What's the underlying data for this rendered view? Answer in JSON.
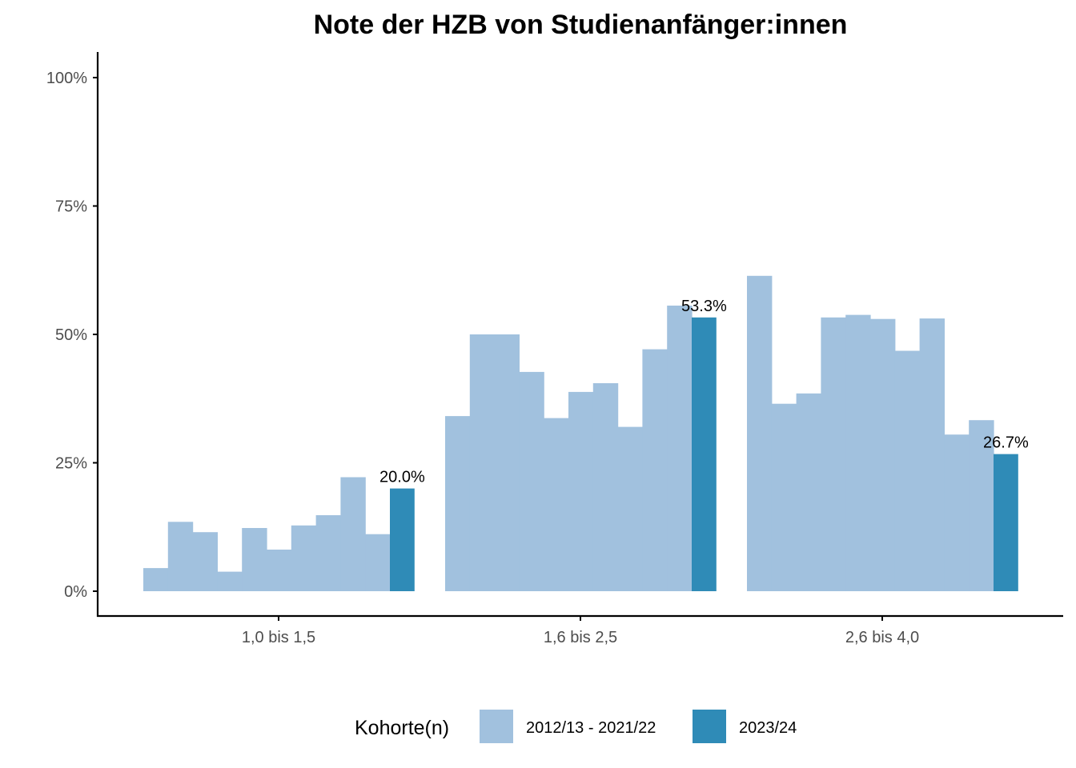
{
  "chart_data": {
    "type": "bar",
    "title": "Note der HZB von Studienanfänger:innen",
    "xlabel": "",
    "ylabel": "",
    "ylim": [
      0,
      1.05
    ],
    "y_ticks": [
      0,
      0.25,
      0.5,
      0.75,
      1.0
    ],
    "y_tick_labels": [
      "0%",
      "25%",
      "50%",
      "75%",
      "100%"
    ],
    "grid": false,
    "categories": [
      "1,0 bis 1,5",
      "1,6 bis 2,5",
      "2,6 bis 4,0"
    ],
    "groups": [
      {
        "category": "1,0 bis 1,5",
        "history_values": [
          0.045,
          0.135,
          0.115,
          0.038,
          0.123,
          0.081,
          0.128,
          0.148,
          0.222,
          0.111
        ],
        "current_value": 0.2,
        "current_label": "20.0%"
      },
      {
        "category": "1,6 bis 2,5",
        "history_values": [
          0.341,
          0.5,
          0.5,
          0.427,
          0.337,
          0.388,
          0.405,
          0.32,
          0.471,
          0.556
        ],
        "current_value": 0.533,
        "current_label": "53.3%"
      },
      {
        "category": "2,6 bis 4,0",
        "history_values": [
          0.614,
          0.365,
          0.385,
          0.533,
          0.538,
          0.53,
          0.468,
          0.531,
          0.305,
          0.333
        ],
        "current_value": 0.267,
        "current_label": "26.7%"
      }
    ],
    "series": [
      {
        "name": "2012/13 - 2021/22",
        "color": "#a1c1de"
      },
      {
        "name": "2023/24",
        "color": "#2f8bb7"
      }
    ],
    "legend": {
      "title": "Kohorte(n)",
      "position": "bottom"
    }
  },
  "colors": {
    "history": "#a1c1de",
    "current": "#2f8bb7",
    "axis": "#000000",
    "tick_text": "#4d4d4d"
  }
}
